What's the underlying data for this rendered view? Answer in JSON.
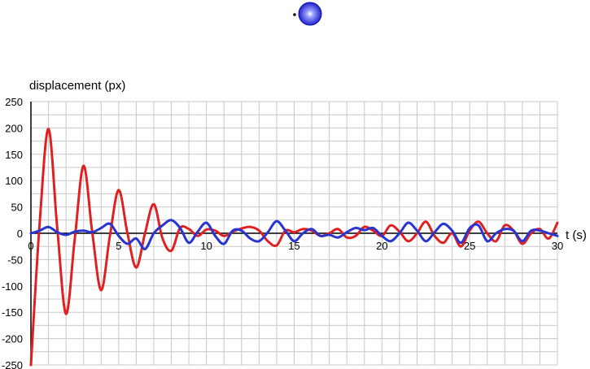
{
  "chart_data": {
    "type": "line",
    "ylabel": "displacement (px)",
    "xlabel": "t (s)",
    "xlim": [
      0,
      30
    ],
    "ylim": [
      -250,
      250
    ],
    "xticks": [
      0,
      5,
      10,
      15,
      20,
      25,
      30
    ],
    "xtick_labels": [
      "0",
      "5",
      "10",
      "15",
      "20",
      "25",
      "30"
    ],
    "yticks": [
      250,
      200,
      150,
      100,
      50,
      0,
      -50,
      -100,
      -150,
      -200,
      -250
    ],
    "ytick_labels": [
      "250",
      "200",
      "150",
      "100",
      "50",
      "0",
      "-50",
      "-100",
      "-150",
      "-200",
      "-250"
    ],
    "grid": true,
    "grid_step_x": 1,
    "grid_step_y": 25,
    "series": [
      {
        "color": "#e02020",
        "x": [
          0,
          0.5,
          1,
          1.5,
          2,
          2.5,
          3,
          3.5,
          4,
          4.5,
          5,
          5.5,
          6,
          6.5,
          7,
          7.5,
          8,
          8.5,
          9,
          9.5,
          10,
          10.5,
          11,
          11.5,
          12,
          12.5,
          13,
          13.5,
          14,
          14.5,
          15,
          15.5,
          16,
          16.5,
          17,
          17.5,
          18,
          18.5,
          19,
          19.5,
          20,
          20.5,
          21,
          21.5,
          22,
          22.5,
          23,
          23.5,
          24,
          24.5,
          25,
          25.5,
          26,
          26.5,
          27,
          27.5,
          28,
          28.5,
          29,
          29.5,
          30
        ],
        "values": [
          -250,
          20,
          198,
          10,
          -153,
          -10,
          128,
          0,
          -108,
          -5,
          82,
          0,
          -65,
          0,
          55,
          -10,
          -33,
          10,
          8,
          -5,
          7,
          5,
          -5,
          3,
          9,
          12,
          5,
          -15,
          -23,
          5,
          2,
          8,
          5,
          -5,
          0,
          8,
          -8,
          -5,
          12,
          5,
          -5,
          15,
          3,
          -15,
          0,
          22,
          -5,
          -18,
          0,
          -25,
          5,
          22,
          0,
          -15,
          15,
          5,
          -20,
          0,
          8,
          -10,
          20
        ]
      },
      {
        "color": "#2a35d0",
        "x": [
          0,
          0.5,
          1,
          1.5,
          2,
          2.5,
          3,
          3.5,
          4,
          4.5,
          5,
          5.5,
          6,
          6.5,
          7,
          7.5,
          8,
          8.5,
          9,
          9.5,
          10,
          10.5,
          11,
          11.5,
          12,
          12.5,
          13,
          13.5,
          14,
          14.5,
          15,
          15.5,
          16,
          16.5,
          17,
          17.5,
          18,
          18.5,
          19,
          19.5,
          20,
          20.5,
          21,
          21.5,
          22,
          22.5,
          23,
          23.5,
          24,
          24.5,
          25,
          25.5,
          26,
          26.5,
          27,
          27.5,
          28,
          28.5,
          29,
          29.5,
          30
        ],
        "values": [
          0,
          5,
          12,
          2,
          -3,
          3,
          5,
          2,
          10,
          18,
          -5,
          -20,
          -10,
          -30,
          0,
          15,
          25,
          10,
          -18,
          3,
          20,
          -5,
          -20,
          5,
          5,
          -10,
          -15,
          2,
          23,
          5,
          -15,
          0,
          8,
          -5,
          -3,
          -8,
          2,
          10,
          6,
          10,
          -5,
          -15,
          0,
          20,
          5,
          -15,
          2,
          18,
          5,
          -18,
          10,
          15,
          -15,
          0,
          8,
          5,
          -15,
          5,
          5,
          0,
          -5
        ]
      }
    ]
  },
  "indicator": {
    "ball_color": "#2a35d0",
    "dot_color": "#000000"
  }
}
